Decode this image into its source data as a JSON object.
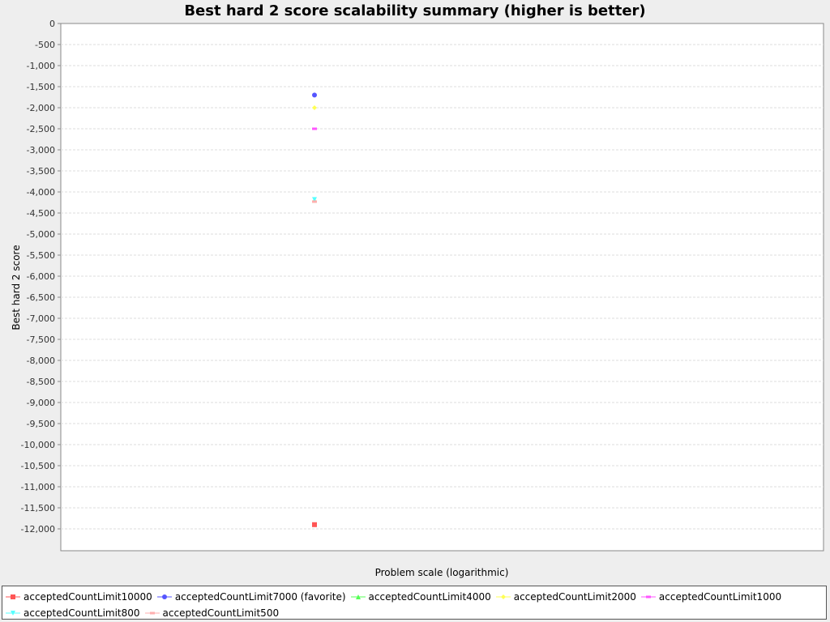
{
  "chart_data": {
    "type": "scatter",
    "title": "Best hard 2 score scalability summary (higher is better)",
    "xlabel": "Problem scale (logarithmic)",
    "ylabel": "Best hard 2 score",
    "ylim": [
      -12500,
      0
    ],
    "ytick_step": 500,
    "grid": true,
    "legend_position": "bottom",
    "series": [
      {
        "name": "acceptedCountLimit10000",
        "color": "#ff5555",
        "marker": "square",
        "values": [
          -11900
        ]
      },
      {
        "name": "acceptedCountLimit7000 (favorite)",
        "color": "#5555ff",
        "marker": "circle",
        "values": [
          -1700
        ]
      },
      {
        "name": "acceptedCountLimit4000",
        "color": "#55ff55",
        "marker": "triangle-up",
        "values": [
          -4200
        ]
      },
      {
        "name": "acceptedCountLimit2000",
        "color": "#ffff55",
        "marker": "diamond",
        "values": [
          -2000
        ]
      },
      {
        "name": "acceptedCountLimit1000",
        "color": "#ff55ff",
        "marker": "rect-h",
        "values": [
          -2500
        ]
      },
      {
        "name": "acceptedCountLimit800",
        "color": "#55ffff",
        "marker": "triangle-down",
        "values": [
          -4180
        ]
      },
      {
        "name": "acceptedCountLimit500",
        "color": "#ffafaf",
        "marker": "rect-h",
        "values": [
          -4230
        ]
      }
    ]
  }
}
